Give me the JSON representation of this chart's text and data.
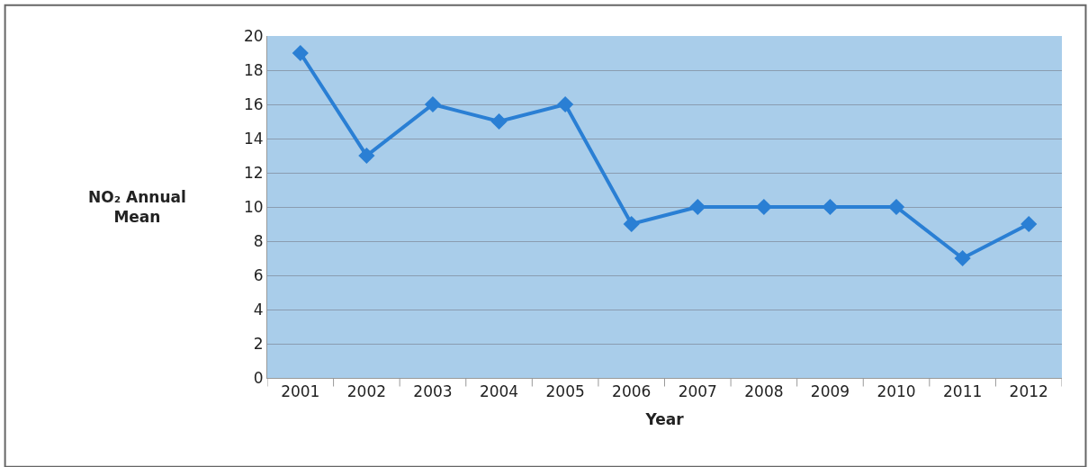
{
  "chart_data": {
    "type": "line",
    "xlabel": "Year",
    "ylabel": "NO₂ Annual Mean",
    "categories": [
      "2001",
      "2002",
      "2003",
      "2004",
      "2005",
      "2006",
      "2007",
      "2008",
      "2009",
      "2010",
      "2011",
      "2012"
    ],
    "series": [
      {
        "color": "#2a7fd4",
        "values": [
          19,
          13,
          16,
          15,
          16,
          9,
          10,
          10,
          10,
          10,
          7,
          9
        ]
      }
    ],
    "ylim": [
      0,
      20
    ],
    "yticks": [
      0,
      2,
      4,
      6,
      8,
      10,
      12,
      14,
      16,
      18,
      20
    ],
    "grid": "y",
    "marker": "diamond",
    "line_style": "solid"
  }
}
